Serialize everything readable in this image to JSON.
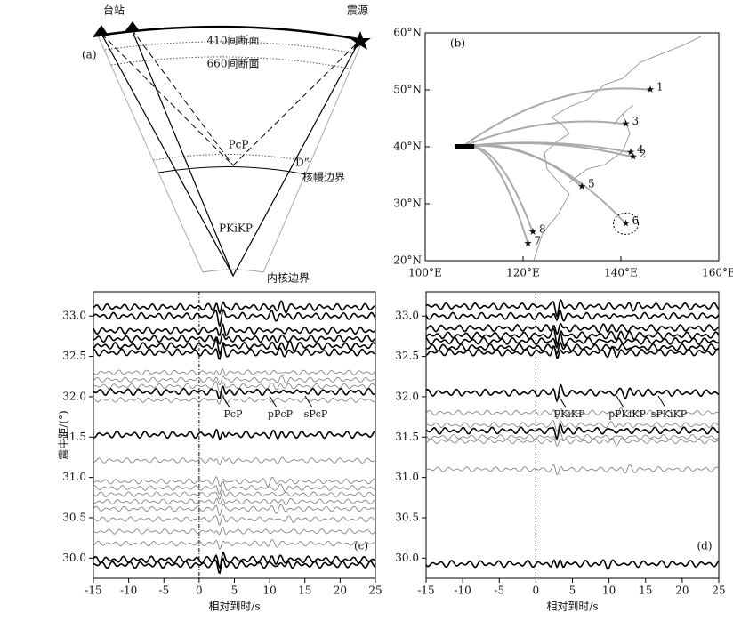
{
  "chart_data": [
    {
      "type": "diagram",
      "panel": "(a)",
      "station": "台站",
      "source": "震源",
      "d410": "410间断面",
      "d660": "660间断面",
      "pcp": "PcP",
      "dpp": "D”",
      "cmb": "核幔边界",
      "pkikp": "PKiKP",
      "icb": "内核边界"
    },
    {
      "type": "map",
      "panel": "(b)",
      "xlim": [
        100,
        160
      ],
      "ylim": [
        20,
        60
      ],
      "xticks": [
        {
          "value": 100,
          "label": "100°E"
        },
        {
          "value": 120,
          "label": "120°E"
        },
        {
          "value": 140,
          "label": "140°E"
        },
        {
          "value": 160,
          "label": "160°E"
        }
      ],
      "yticks": [
        {
          "value": 20,
          "label": "20°N"
        },
        {
          "value": 30,
          "label": "30°N"
        },
        {
          "value": 40,
          "label": "40°N"
        },
        {
          "value": 50,
          "label": "50°N"
        },
        {
          "value": 60,
          "label": "60°N"
        }
      ],
      "events": {
        "labels": [
          "1",
          "2",
          "3",
          "4",
          "5",
          "6",
          "7",
          "8"
        ],
        "lon": [
          146,
          142.5,
          141,
          142,
          132,
          141,
          121,
          122
        ],
        "lat": [
          50,
          38.2,
          44,
          39,
          33,
          26.5,
          23,
          25
        ]
      }
    },
    {
      "type": "seismogram",
      "panel": "(c)",
      "xlabel": "相对到时/s",
      "ylabel": "震中距/(°)",
      "xlim": [
        -15,
        25
      ],
      "ylim": [
        29.75,
        33.3
      ],
      "xticks": [
        -15,
        -10,
        -5,
        0,
        5,
        10,
        15,
        20,
        25
      ],
      "yticks": [
        {
          "value": 30,
          "label": "30.0"
        },
        30.5,
        {
          "value": 31,
          "label": "31.0"
        },
        31.5,
        {
          "value": 32,
          "label": "32.0"
        },
        32.5,
        {
          "value": 33,
          "label": "33.0"
        }
      ],
      "annotations": [
        "PcP",
        "pPcP",
        "sPcP"
      ],
      "series": [
        {
          "color": "#000000",
          "values": [
            33.11,
            33.0,
            32.82,
            32.72,
            32.63,
            32.55,
            32.06,
            31.53,
            29.98,
            29.92
          ]
        },
        {
          "color": "#777777",
          "values": [
            32.3,
            32.21,
            32.13,
            31.96,
            31.21,
            30.95,
            30.87,
            30.79,
            30.7,
            30.61,
            30.48,
            30.33,
            30.18
          ]
        }
      ]
    },
    {
      "type": "seismogram",
      "panel": "(d)",
      "xlabel": "相对到时/s",
      "ylabel": "震中距/(°)",
      "xlim": [
        -15,
        25
      ],
      "ylim": [
        29.75,
        33.3
      ],
      "xticks": [
        -15,
        -10,
        -5,
        0,
        5,
        10,
        15,
        20,
        25
      ],
      "yticks": [
        {
          "value": 30,
          "label": "30.0"
        },
        30.5,
        {
          "value": 31,
          "label": "31.0"
        },
        31.5,
        {
          "value": 32,
          "label": "32.0"
        },
        32.5,
        {
          "value": 33,
          "label": "33.0"
        }
      ],
      "annotations": [
        "PKiKP",
        "pPKiKP",
        "sPKiKP"
      ],
      "series": [
        {
          "color": "#000000",
          "values": [
            33.12,
            33.0,
            32.85,
            32.76,
            32.69,
            32.61,
            32.55,
            32.05,
            31.58,
            29.93
          ]
        },
        {
          "color": "#777777",
          "values": [
            31.8,
            31.65,
            31.5,
            31.45,
            31.1
          ]
        }
      ]
    }
  ]
}
